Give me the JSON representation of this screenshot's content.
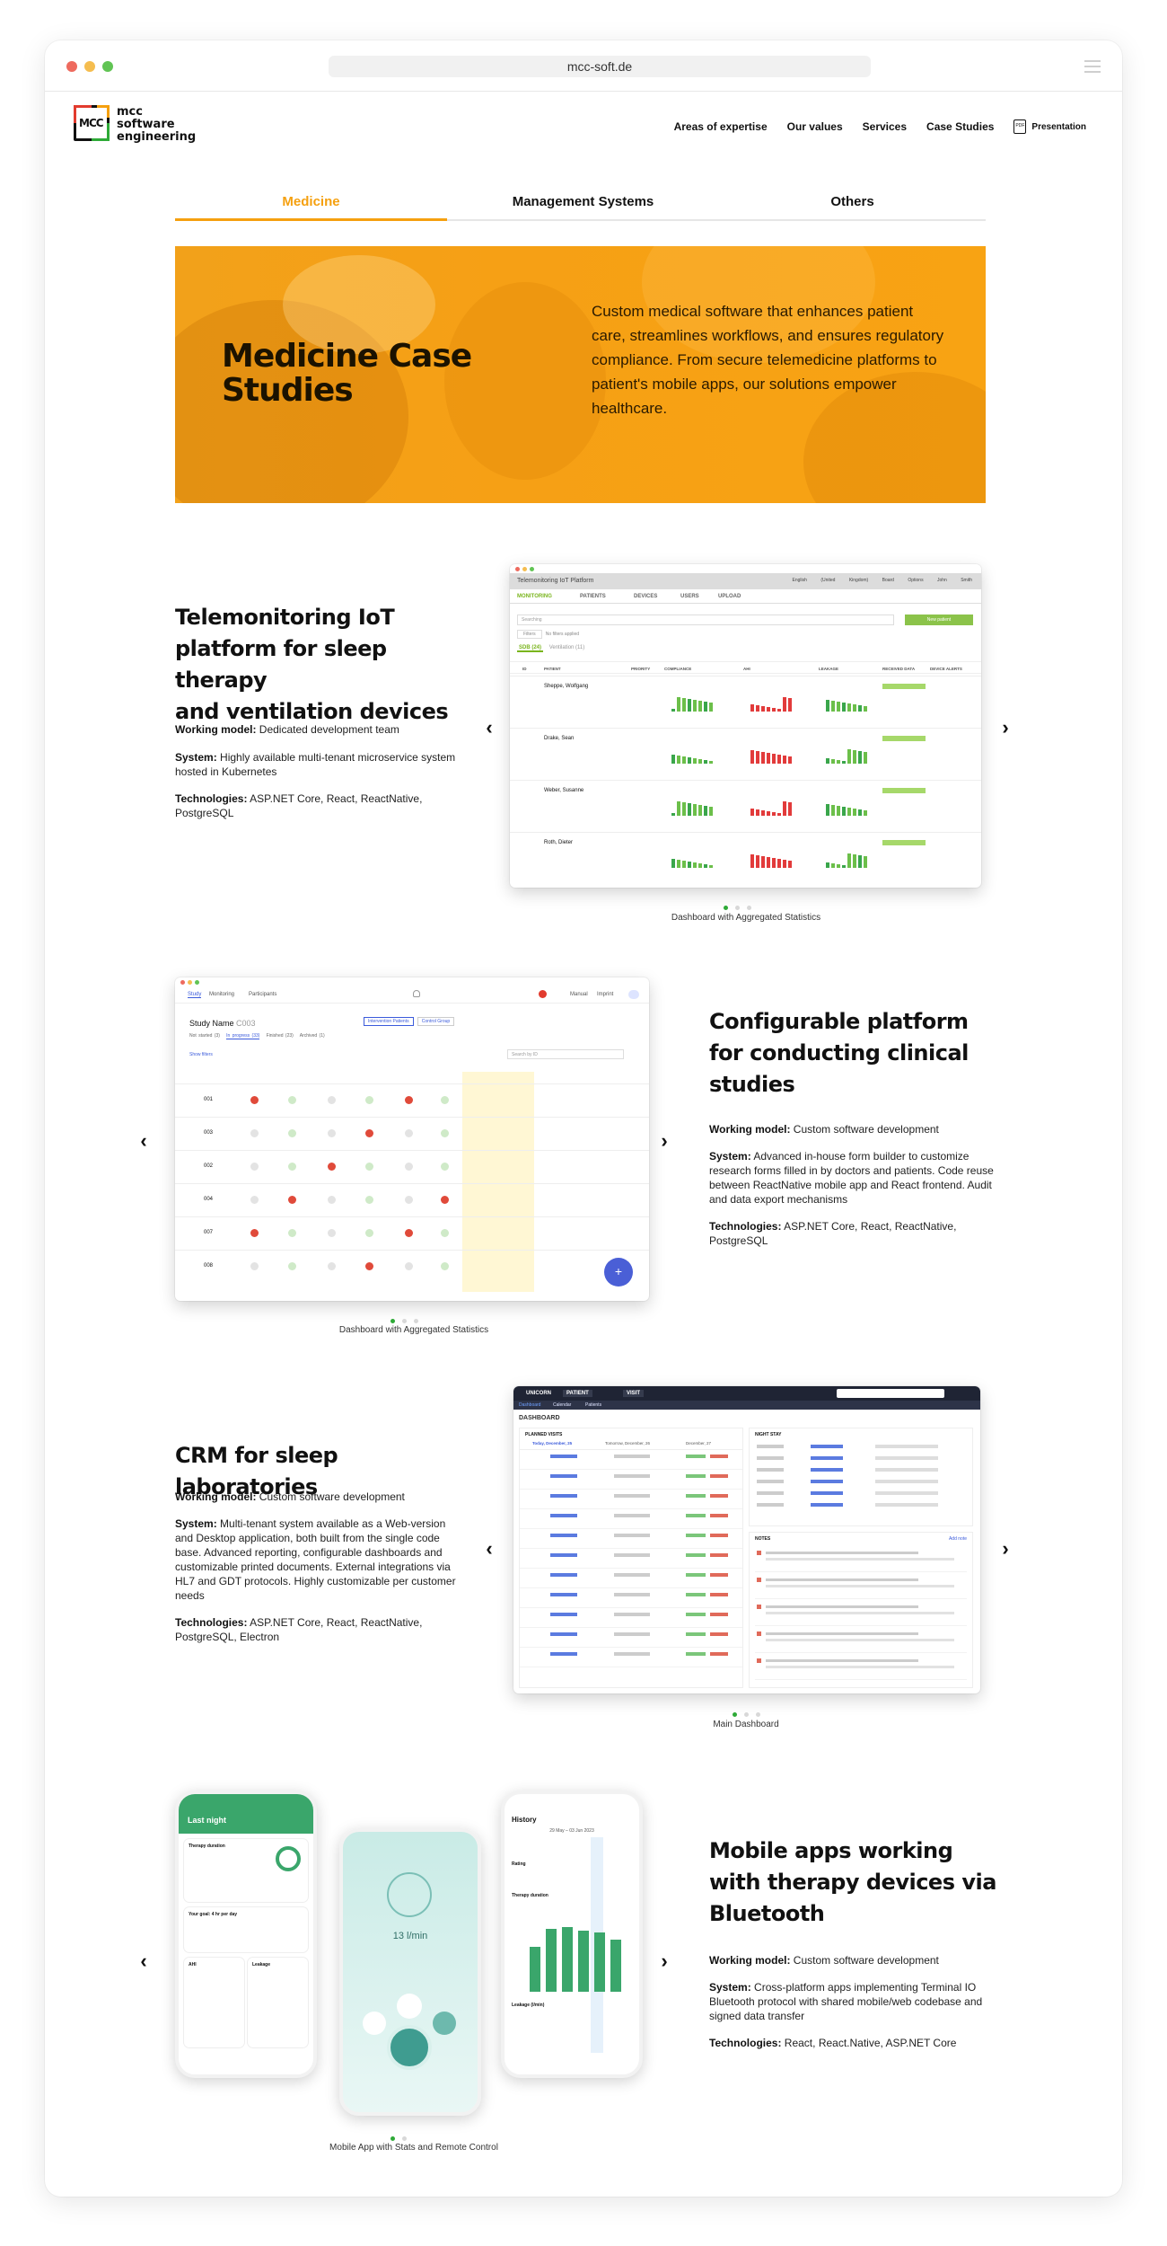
{
  "browser": {
    "url": "mcc-soft.de"
  },
  "brand": {
    "logo_letters": "MCC",
    "name_line1": "mcc",
    "name_line2": "software",
    "name_line3": "engineering"
  },
  "nav": {
    "items": [
      "Areas of expertise",
      "Our values",
      "Services",
      "Case Studies"
    ],
    "presentation": "Presentation"
  },
  "tabs": {
    "items": [
      "Medicine",
      "Management Systems",
      "Others"
    ],
    "active_color": "#f5a00f"
  },
  "hero": {
    "title_line1": "Medicine Case",
    "title_line2": "Studies",
    "text": "Custom medical software that enhances patient care, streamlines workflows, and ensures regulatory compliance. From secure telemedicine platforms to patient's mobile apps, our solutions empower healthcare.",
    "color": "#f5a00f"
  },
  "cases": [
    {
      "title_lines": [
        "Telemonitoring IoT",
        "platform for sleep therapy",
        "and ventilation devices"
      ],
      "working_model_label": "Working model:",
      "working_model": "Dedicated development team",
      "system_label": "System:",
      "system": "Highly available multi-tenant microservice system hosted in Kubernetes",
      "tech_label": "Technologies:",
      "tech": "ASP.NET Core, React, ReactNative, PostgreSQL",
      "caption": "Dashboard with Aggregated Statistics",
      "screen": {
        "app_title": "Telemonitoring IoT Platform",
        "top_links": [
          "English (United Kingdom)",
          "Board",
          "Options",
          "John Smith"
        ],
        "tabs": [
          "MONITORING",
          "PATIENTS",
          "DEVICES",
          "USERS",
          "UPLOAD"
        ],
        "search": "Searching",
        "new_button": "New patient",
        "filter": "Filters",
        "filter_hint": "No filters applied",
        "subtabs": [
          "SDB (24)",
          "Ventilation (11)"
        ],
        "columns": [
          "ID",
          "PATIENT",
          "PRIORITY",
          "COMPLIANCE",
          "AHI",
          "LEAKAGE",
          "RECEIVED DATA",
          "DEVICE ALERTS"
        ],
        "patients": [
          "Sheppe, Wolfgang",
          "Drake, Sean",
          "Weber, Susanne",
          "Roth, Dieter"
        ]
      }
    },
    {
      "title_lines": [
        "Configurable platform",
        "for conducting clinical",
        "studies"
      ],
      "working_model_label": "Working model:",
      "working_model": "Custom software development",
      "system_label": "System:",
      "system": "Advanced in-house form builder to customize research forms filled in by doctors and patients. Code reuse between ReactNative mobile app and React frontend. Audit and data export mechanisms",
      "tech_label": "Technologies:",
      "tech": "ASP.NET Core, React, ReactNative, PostgreSQL",
      "caption": "Dashboard with Aggregated Statistics",
      "screen": {
        "tabs": [
          "Study",
          "Monitoring",
          "Participants"
        ],
        "top_right": [
          "Manual",
          "Imprint"
        ],
        "study_name": "Study Name",
        "study_code": "C003",
        "buttons": [
          "Intervention Patients",
          "Control Group"
        ],
        "filters": [
          "Not started (3)",
          "In progress (33)",
          "Finished (23)",
          "Archived (1)"
        ],
        "show_filters": "Show filters",
        "search": "Search by ID",
        "ids": [
          "001",
          "003",
          "002",
          "004",
          "007",
          "008"
        ]
      }
    },
    {
      "title_lines": [
        "CRM for sleep laboratories"
      ],
      "working_model_label": "Working model:",
      "working_model": "Custom software development",
      "system_label": "System:",
      "system": "Multi-tenant system available as a Web-version and Desktop application, both built from the single code base. Advanced reporting, configurable dashboards and customizable printed documents. External integrations via HL7 and GDT protocols. Highly customizable per customer needs",
      "tech_label": "Technologies:",
      "tech": "ASP.NET Core, React, ReactNative, PostgreSQL, Electron",
      "caption": "Main Dashboard",
      "screen": {
        "app": "UNICORN",
        "menus": [
          "PATIENT",
          "VISIT"
        ],
        "subtabs": [
          "Dashboard",
          "Calendar",
          "Patients"
        ],
        "heading": "DASHBOARD",
        "planned": "PLANNED VISITS",
        "night": "NIGHT STAY",
        "notes": "NOTES",
        "add_note": "Add note",
        "days": [
          "Today, December, 25",
          "Tomorrow, December, 26",
          "December, 27"
        ]
      }
    },
    {
      "title_lines": [
        "Mobile apps working",
        "with therapy devices via",
        "Bluetooth"
      ],
      "working_model_label": "Working model:",
      "working_model": "Custom software development",
      "system_label": "System:",
      "system": "Cross-platform apps implementing Terminal IO Bluetooth protocol with shared mobile/web codebase and signed data transfer",
      "tech_label": "Technologies:",
      "tech": "React, React.Native, ASP.NET Core",
      "caption": "Mobile App with Stats and Remote Control",
      "screen": {
        "phone1_title": "Last night",
        "phone1_card": "Therapy duration",
        "phone1_goal": "Your goal: 4 hr per day",
        "phone1_ahi": "AHI",
        "phone1_leak": "Leakage",
        "phone2_flow": "13 l/min",
        "phone3_title": "History",
        "phone3_range": "29 May – 03 Jun 2023",
        "phone3_rating": "Rating",
        "phone3_td": "Therapy duration",
        "phone3_leak": "Leakage (l/min)"
      }
    }
  ]
}
